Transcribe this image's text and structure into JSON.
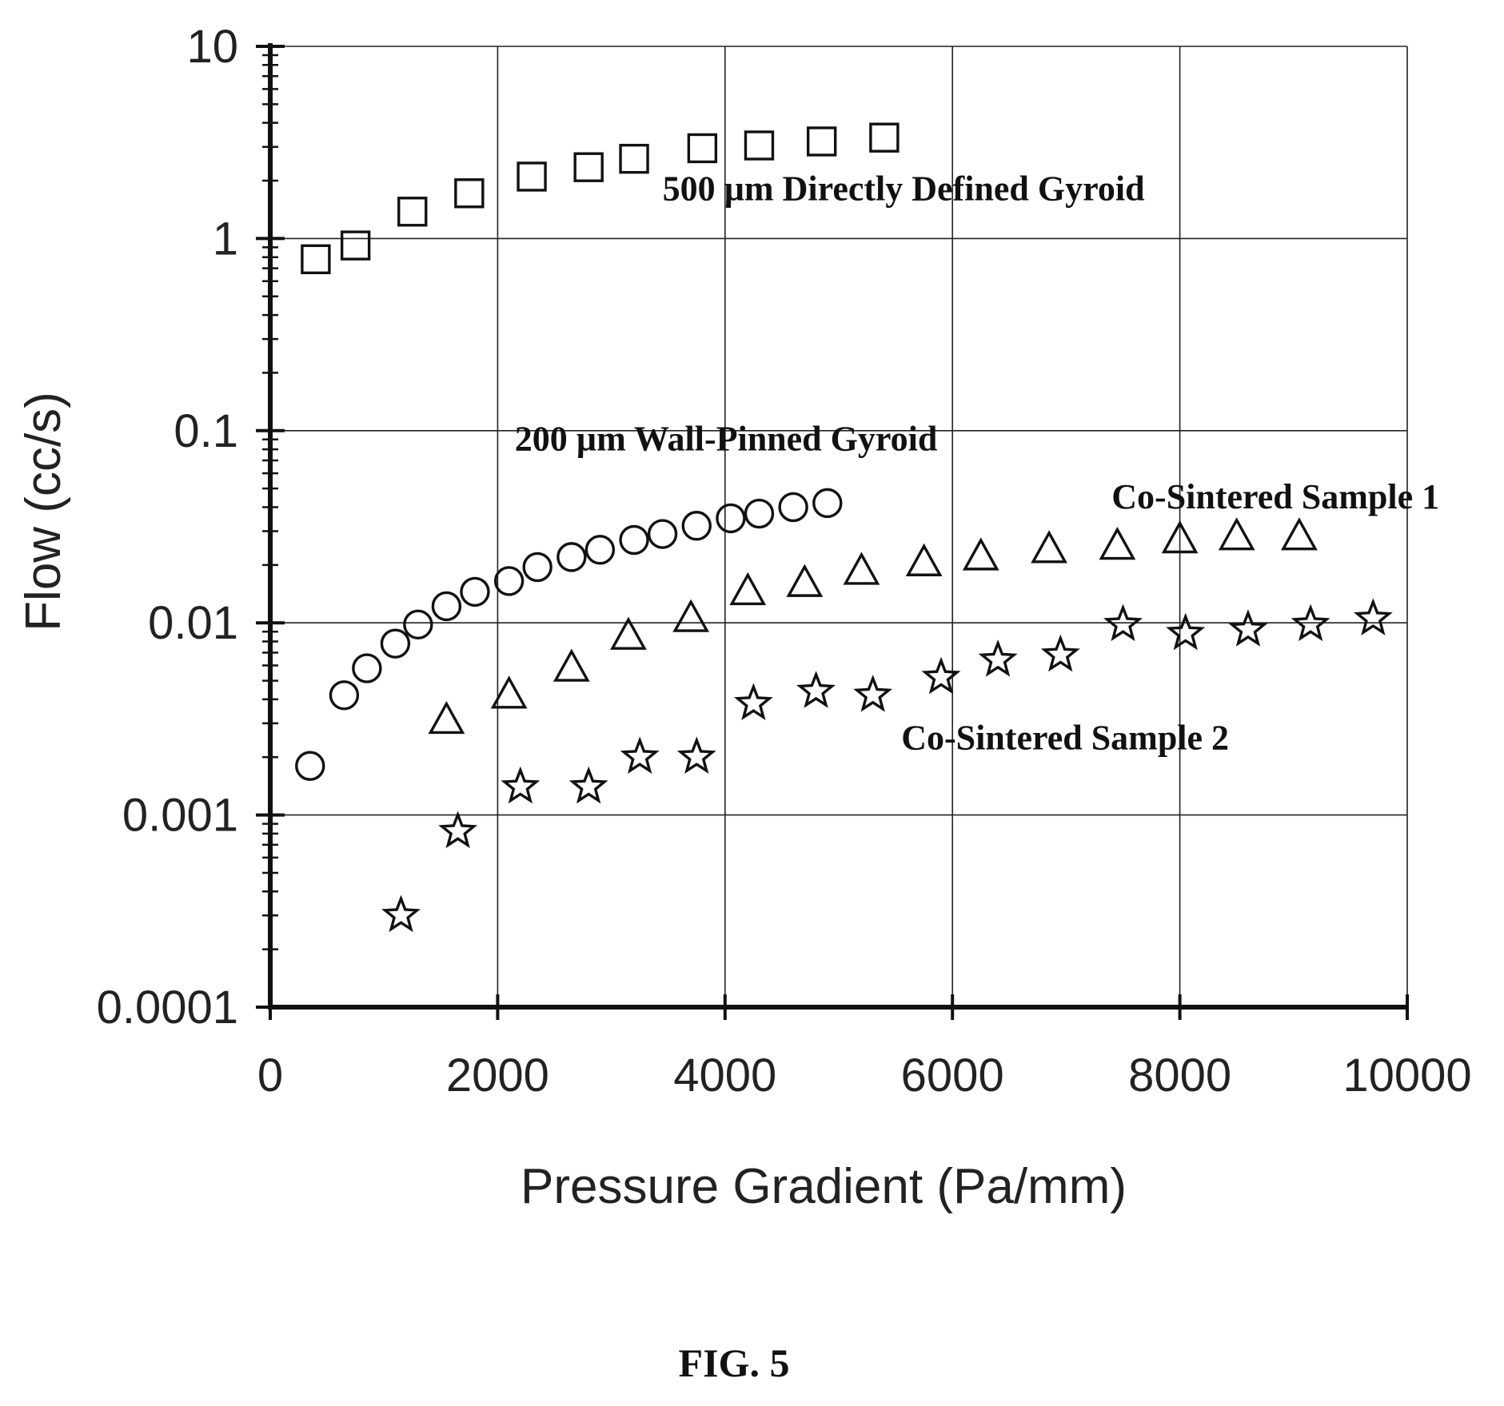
{
  "figure_label": "FIG. 5",
  "chart_data": {
    "type": "scatter",
    "title": "",
    "xlabel": "Pressure Gradient (Pa/mm)",
    "ylabel": "Flow (cc/s)",
    "xlim": [
      0,
      10000
    ],
    "ylim": [
      0.0001,
      10
    ],
    "y_scale": "log",
    "grid": true,
    "x_ticks": [
      0,
      2000,
      4000,
      6000,
      8000,
      10000
    ],
    "x_tick_labels": [
      "0",
      "2000",
      "4000",
      "6000",
      "8000",
      "10000"
    ],
    "y_ticks": [
      0.0001,
      0.001,
      0.01,
      0.1,
      1,
      10
    ],
    "y_tick_labels": [
      "0.0001",
      "0.001",
      "0.01",
      "0.1",
      "1",
      "10"
    ],
    "series": [
      {
        "name": "500 µm Directly Defined Gyroid",
        "marker": "square",
        "x": [
          400,
          750,
          1250,
          1750,
          2300,
          2800,
          3200,
          3800,
          4300,
          4850,
          5400
        ],
        "y": [
          0.78,
          0.92,
          1.38,
          1.72,
          2.1,
          2.35,
          2.6,
          2.95,
          3.05,
          3.2,
          3.35
        ]
      },
      {
        "name": "200 µm Wall-Pinned Gyroid",
        "marker": "circle",
        "x": [
          350,
          650,
          850,
          1100,
          1300,
          1550,
          1800,
          2100,
          2350,
          2650,
          2900,
          3200,
          3450,
          3750,
          4050,
          4300,
          4600,
          4900
        ],
        "y": [
          0.0018,
          0.0042,
          0.0058,
          0.0078,
          0.0098,
          0.0122,
          0.0145,
          0.0165,
          0.0195,
          0.022,
          0.024,
          0.027,
          0.029,
          0.032,
          0.035,
          0.037,
          0.04,
          0.042
        ],
        "label_x": 2150,
        "label_y": 0.079
      },
      {
        "name": "Co-Sintered Sample 1",
        "marker": "triangle",
        "x": [
          1550,
          2100,
          2650,
          3150,
          3700,
          4200,
          4700,
          5200,
          5750,
          6250,
          6850,
          7450,
          8000,
          8500,
          9050
        ],
        "y": [
          0.0031,
          0.0042,
          0.0058,
          0.0085,
          0.0105,
          0.0145,
          0.016,
          0.0185,
          0.0205,
          0.022,
          0.024,
          0.025,
          0.027,
          0.028,
          0.028
        ],
        "label_x": 7400,
        "label_y": 0.0395
      },
      {
        "name": "Co-Sintered Sample 2",
        "marker": "star",
        "x": [
          1150,
          1650,
          2200,
          2800,
          3250,
          3750,
          4250,
          4800,
          5300,
          5900,
          6400,
          6950,
          7500,
          8050,
          8600,
          9150,
          9700
        ],
        "y": [
          0.0003,
          0.00082,
          0.0014,
          0.0014,
          0.002,
          0.002,
          0.0038,
          0.0044,
          0.0042,
          0.0052,
          0.0064,
          0.0068,
          0.0098,
          0.0088,
          0.0092,
          0.0098,
          0.0105
        ],
        "label_x": 5550,
        "label_y": 0.0022
      }
    ],
    "annotations": [
      {
        "text": "500 µm Directly Defined Gyroid",
        "x": 3450,
        "y": 1.58
      },
      {
        "text": "200 µm Wall-Pinned Gyroid",
        "x": 2150,
        "y": 0.079
      },
      {
        "text": "Co-Sintered Sample 1",
        "x": 7400,
        "y": 0.0395
      },
      {
        "text": "Co-Sintered Sample 2",
        "x": 5550,
        "y": 0.0022
      }
    ]
  }
}
